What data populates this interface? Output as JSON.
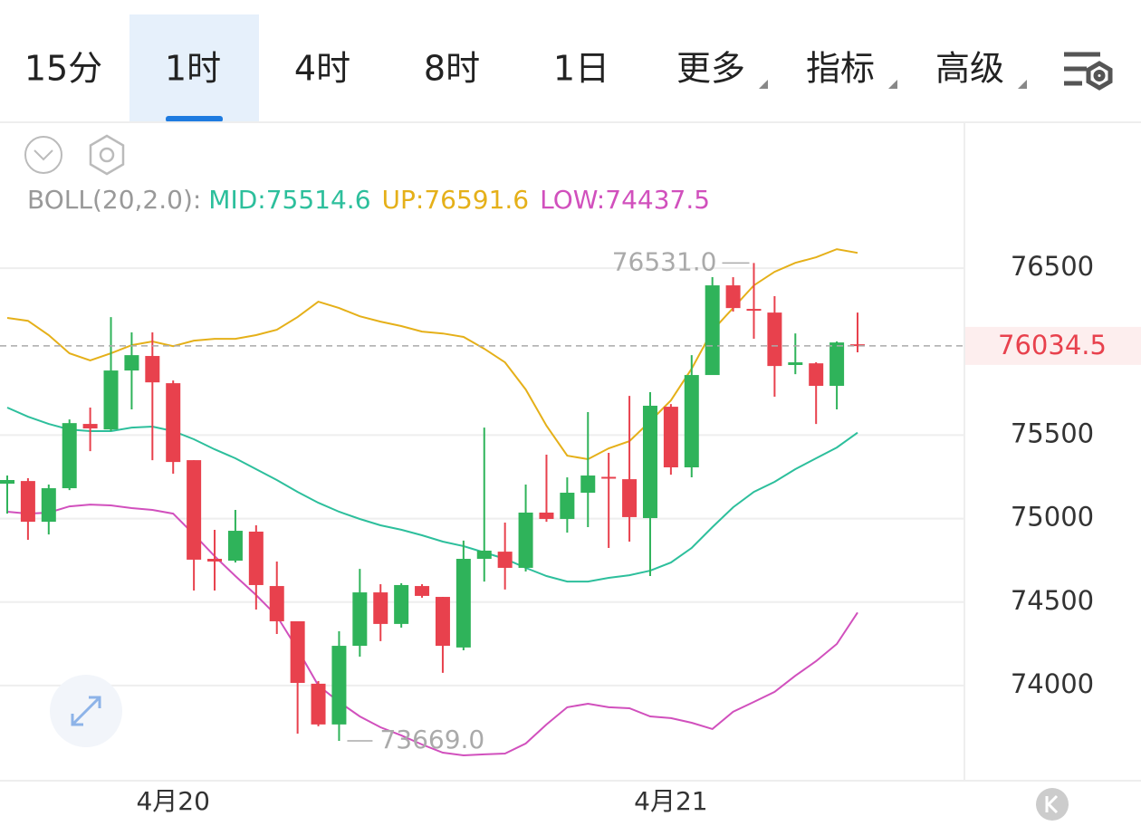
{
  "tabs": [
    "15分",
    "1时",
    "4时",
    "8时",
    "1日",
    "更多",
    "指标",
    "高级"
  ],
  "chart_data": {
    "type": "candlestick",
    "indicator": "BOLL(20,2.0):",
    "categories": [
      null,
      null,
      null,
      null,
      null,
      null,
      null,
      null,
      "4月20",
      null,
      null,
      null,
      null,
      null,
      null,
      null,
      null,
      null,
      null,
      null,
      null,
      null,
      null,
      null,
      null,
      null,
      null,
      null,
      null,
      null,
      null,
      null,
      "4月21",
      null,
      null,
      null,
      null,
      null,
      null,
      null,
      null,
      null
    ],
    "open": [
      75209,
      75225,
      74981,
      75182,
      75567,
      75534,
      75887,
      75974,
      75811,
      75350,
      74759,
      74748,
      74922,
      74596,
      74385,
      74011,
      73767,
      74238,
      74558,
      74369,
      74596,
      74531,
      74228,
      74759,
      74802,
      74705,
      75036,
      74998,
      75155,
      75250,
      75236,
      75003,
      75670,
      75307,
      75860,
      76397,
      76256,
      76234,
      75920,
      75930,
      75795,
      76044
    ],
    "high": [
      75258,
      75242,
      75204,
      75594,
      75665,
      76207,
      76115,
      76115,
      75827,
      75350,
      74933,
      75052,
      74960,
      74743,
      74385,
      74027,
      74325,
      74699,
      74607,
      74613,
      74607,
      74531,
      74868,
      75545,
      74976,
      75204,
      75383,
      75247,
      75638,
      75394,
      75735,
      75757,
      75686,
      75979,
      76446,
      76446,
      76531,
      76332,
      76109,
      75936,
      76061,
      76234
    ],
    "low": [
      75030,
      74873,
      74905,
      75171,
      75404,
      75524,
      75654,
      75350,
      75269,
      74569,
      74569,
      74737,
      74455,
      74309,
      73712,
      73756,
      73669,
      74173,
      74266,
      74347,
      74526,
      74076,
      74211,
      74623,
      74575,
      74683,
      74981,
      74916,
      74949,
      74824,
      74862,
      74656,
      75263,
      75247,
      75860,
      76240,
      76077,
      75730,
      75865,
      75567,
      75654,
      75996
    ],
    "close": [
      75231,
      74981,
      75182,
      75572,
      75540,
      75887,
      75979,
      75816,
      75339,
      74754,
      74743,
      74927,
      74602,
      74385,
      74016,
      73767,
      74238,
      74558,
      74369,
      74602,
      74537,
      74238,
      74759,
      74808,
      74705,
      75036,
      74998,
      75155,
      75258,
      75245,
      75009,
      75676,
      75307,
      75860,
      76397,
      76261,
      76245,
      75914,
      75936,
      75795,
      76055,
      76034.5
    ],
    "up_color": "#2fb35a",
    "down_color": "#e8414d",
    "series": [
      {
        "name": "MID:",
        "color": "#2dbf9c",
        "values": [
          75665,
          75610,
          75567,
          75534,
          75524,
          75524,
          75545,
          75551,
          75524,
          75475,
          75415,
          75361,
          75296,
          75231,
          75160,
          75095,
          75041,
          74998,
          74960,
          74933,
          74900,
          74862,
          74835,
          74797,
          74759,
          74705,
          74656,
          74623,
          74623,
          74645,
          74661,
          74688,
          74737,
          74824,
          74949,
          75068,
          75160,
          75220,
          75296,
          75361,
          75426,
          75514.6
        ]
      },
      {
        "name": "UP:",
        "color": "#e5b019",
        "values": [
          76202,
          76185,
          76099,
          75990,
          75947,
          75990,
          76039,
          76061,
          76033,
          76066,
          76077,
          76077,
          76099,
          76131,
          76207,
          76299,
          76261,
          76212,
          76180,
          76153,
          76120,
          76109,
          76088,
          76017,
          75936,
          75773,
          75556,
          75377,
          75356,
          75421,
          75464,
          75583,
          75708,
          75898,
          76126,
          76261,
          76397,
          76478,
          76532,
          76565,
          76614,
          76591.6
        ]
      },
      {
        "name": "LOW:",
        "color": "#d150bd",
        "values": [
          75041,
          75030,
          75036,
          75073,
          75084,
          75079,
          75063,
          75052,
          75030,
          74905,
          74775,
          74656,
          74542,
          74417,
          74217,
          74000,
          73902,
          73815,
          73750,
          73702,
          73647,
          73598,
          73582,
          73588,
          73593,
          73653,
          73767,
          73870,
          73891,
          73870,
          73864,
          73815,
          73805,
          73777,
          73740,
          73843,
          73902,
          73962,
          74059,
          74146,
          74249,
          74437.5
        ]
      }
    ],
    "ylim": [
      73430,
      76750
    ],
    "yticks": [
      74000,
      74500,
      75000,
      75500,
      76500
    ],
    "grid": true,
    "annotations": [
      {
        "value": 76531,
        "label": "76531.0"
      },
      {
        "value": 73669,
        "label": "73669.0"
      }
    ]
  }
}
